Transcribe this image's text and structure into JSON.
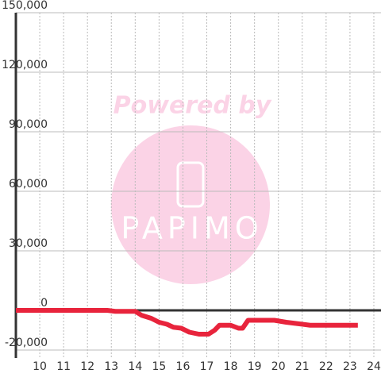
{
  "chart_data": {
    "type": "line",
    "watermark": {
      "line1": "Powered by",
      "line2": "PAPIMO"
    },
    "x": [
      9,
      12.83,
      13.17,
      14.0,
      14.27,
      14.67,
      15.0,
      15.33,
      15.6,
      15.93,
      16.27,
      16.67,
      17.07,
      17.33,
      17.53,
      18.0,
      18.33,
      18.5,
      18.73,
      19.83,
      20.33,
      20.67,
      21.33,
      23.33
    ],
    "series": [
      {
        "color": "#e8243c",
        "values": [
          0,
          0,
          -500,
          -500,
          -2500,
          -4000,
          -6000,
          -7000,
          -8500,
          -9000,
          -11000,
          -12000,
          -12000,
          -10000,
          -7500,
          -7500,
          -9000,
          -9000,
          -5000,
          -5000,
          -6000,
          -6500,
          -7500,
          -7500
        ]
      }
    ],
    "xlim": [
      9,
      24.3
    ],
    "xticks": [
      10,
      11,
      12,
      13,
      14,
      15,
      16,
      17,
      18,
      19,
      20,
      21,
      22,
      23,
      24
    ],
    "ylim": [
      -24000,
      150000
    ],
    "yticks": [
      {
        "value": 150000,
        "label": "150,000"
      },
      {
        "value": 120000,
        "label": "120,000"
      },
      {
        "value": 90000,
        "label": "90,000"
      },
      {
        "value": 60000,
        "label": "60,000"
      },
      {
        "value": 30000,
        "label": "30,000"
      },
      0,
      {
        "value": -20000,
        "label": "-20,000"
      }
    ],
    "grid": true
  }
}
